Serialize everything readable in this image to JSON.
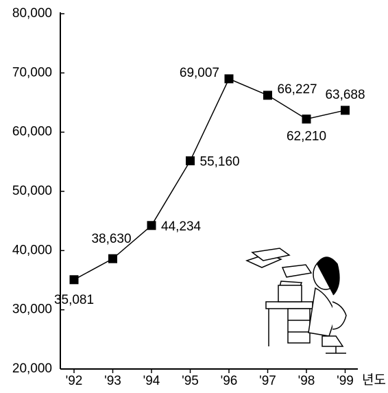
{
  "chart_data": {
    "type": "line",
    "categories": [
      "'92",
      "'93",
      "'94",
      "'95",
      "'96",
      "'97",
      "'98",
      "'99"
    ],
    "values": [
      35081,
      38630,
      44234,
      55160,
      69007,
      66227,
      62210,
      63688
    ],
    "value_labels": [
      "35,081",
      "38,630",
      "44,234",
      "55,160",
      "69,007",
      "66,227",
      "62,210",
      "63,688"
    ],
    "color": "#000000",
    "x_label": "년도",
    "ylim": [
      20000,
      80000
    ],
    "yticks": [
      {
        "value": 20000,
        "label": "20,000"
      },
      {
        "value": 30000,
        "label": "30,000"
      },
      {
        "value": 40000,
        "label": "40,000"
      },
      {
        "value": 50000,
        "label": "50,000"
      },
      {
        "value": 60000,
        "label": "60,000"
      },
      {
        "value": 70000,
        "label": "70,000"
      },
      {
        "value": 80000,
        "label": "80,000"
      }
    ]
  }
}
